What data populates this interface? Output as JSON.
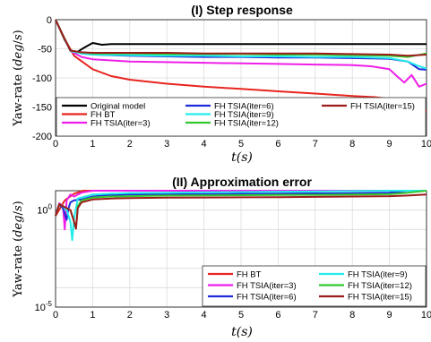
{
  "chart_data": [
    {
      "type": "line",
      "title": "(I) Step response",
      "xlabel": "t(s)",
      "ylabel": "Yaw-rate (deg/s)",
      "xlim": [
        0,
        10
      ],
      "ylim": [
        -200,
        0
      ],
      "xticks": [
        "0",
        "1",
        "2",
        "3",
        "4",
        "5",
        "6",
        "7",
        "8",
        "9",
        "10"
      ],
      "yticks": [
        "0",
        "-50",
        "-100",
        "-150",
        "-200"
      ],
      "grid": true,
      "legend_position": "bottom",
      "series": [
        {
          "name": "Original model",
          "color": "#000000",
          "x": [
            0,
            0.25,
            0.4,
            0.55,
            0.75,
            1.0,
            1.25,
            1.5,
            2,
            3,
            4,
            5,
            6,
            7,
            8,
            9,
            9.5,
            10
          ],
          "y": [
            0,
            -35,
            -52,
            -57,
            -49,
            -40,
            -43,
            -42,
            -42,
            -42,
            -42,
            -42,
            -42,
            -42,
            -42,
            -42,
            -42,
            -42
          ]
        },
        {
          "name": "FH BT",
          "color": "#e8251f",
          "x": [
            0,
            0.2,
            0.5,
            1,
            1.5,
            2,
            3,
            4,
            5,
            6,
            7,
            8,
            8.6,
            9,
            9.3,
            9.5,
            9.7,
            9.85,
            10
          ],
          "y": [
            0,
            -28,
            -62,
            -85,
            -97,
            -103,
            -110,
            -115,
            -119,
            -123,
            -127,
            -131,
            -133,
            -136,
            -138,
            -140,
            -143,
            -150,
            -158
          ]
        },
        {
          "name": "FH TSIA(iter=3)",
          "color": "#ee1fe8",
          "x": [
            0,
            0.2,
            0.4,
            0.7,
            1,
            1.5,
            2,
            3,
            4,
            5,
            6,
            7,
            8,
            8.5,
            9,
            9.2,
            9.4,
            9.6,
            9.8,
            10
          ],
          "y": [
            0,
            -27,
            -54,
            -64,
            -68,
            -70,
            -72,
            -73,
            -74,
            -75,
            -76,
            -77,
            -78,
            -80,
            -85,
            -97,
            -108,
            -95,
            -115,
            -110
          ]
        },
        {
          "name": "FH TSIA(iter=6)",
          "color": "#1f2ad8",
          "x": [
            0,
            0.2,
            0.4,
            0.7,
            1,
            2,
            3,
            4,
            5,
            6,
            7,
            8,
            9,
            9.5,
            9.8,
            10
          ],
          "y": [
            0,
            -27,
            -53,
            -58,
            -60,
            -62,
            -63,
            -64,
            -64,
            -65,
            -65,
            -66,
            -67,
            -72,
            -85,
            -86
          ]
        },
        {
          "name": "FH TSIA(iter=9)",
          "color": "#22ecec",
          "x": [
            0,
            0.2,
            0.4,
            0.7,
            1,
            2,
            3,
            4,
            5,
            6,
            7,
            8,
            9,
            9.5,
            9.8,
            10
          ],
          "y": [
            0,
            -27,
            -54,
            -58,
            -60,
            -61,
            -62,
            -62,
            -63,
            -63,
            -64,
            -64,
            -66,
            -72,
            -80,
            -84
          ]
        },
        {
          "name": "FH TSIA(iter=12)",
          "color": "#33c82e",
          "x": [
            0,
            0.2,
            0.4,
            0.7,
            1,
            2,
            3,
            4,
            5,
            6,
            7,
            8,
            9,
            9.5,
            10
          ],
          "y": [
            0,
            -27,
            -53,
            -56,
            -58,
            -58,
            -59,
            -59,
            -59,
            -60,
            -60,
            -61,
            -62,
            -64,
            -58
          ]
        },
        {
          "name": "FH TSIA(iter=15)",
          "color": "#9b1c1c",
          "x": [
            0,
            0.2,
            0.4,
            0.7,
            1,
            2,
            3,
            4,
            5,
            6,
            7,
            8,
            9,
            9.5,
            10
          ],
          "y": [
            0,
            -27,
            -53,
            -56,
            -57,
            -57,
            -57,
            -58,
            -58,
            -58,
            -58,
            -59,
            -60,
            -62,
            -60
          ]
        }
      ]
    },
    {
      "type": "line",
      "title": "(II) Approximation error",
      "xlabel": "t(s)",
      "ylabel": "Yaw-rate (deg/s)",
      "xlim": [
        0,
        10
      ],
      "ylim_log10": [
        -5,
        1
      ],
      "yscale": "log",
      "xticks": [
        "0",
        "1",
        "2",
        "3",
        "4",
        "5",
        "6",
        "7",
        "8",
        "9",
        "10"
      ],
      "yticks": [
        {
          "label": "10",
          "exp": "0",
          "log10": 0
        },
        {
          "label": "10",
          "exp": "-5",
          "log10": -5
        }
      ],
      "grid": true,
      "legend_position": "bottom-right",
      "series": [
        {
          "name": "FH BT",
          "color": "#e8251f",
          "x": [
            0,
            0.25,
            0.5,
            0.75,
            1,
            1.5,
            2,
            3,
            4,
            5,
            6,
            7,
            8,
            9,
            9.5,
            10
          ],
          "log10_y": [
            -0.3,
            0.5,
            0.85,
            1.15,
            1.3,
            1.4,
            1.45,
            1.48,
            1.5,
            1.52,
            1.53,
            1.55,
            1.56,
            1.57,
            1.6,
            1.65
          ]
        },
        {
          "name": "FH TSIA(iter=3)",
          "color": "#ee1fe8",
          "x": [
            0,
            0.1,
            0.2,
            0.25,
            0.3,
            0.4,
            0.5,
            0.7,
            1,
            1.5,
            2,
            3,
            4,
            5,
            6,
            7,
            8,
            9,
            9.5,
            10
          ],
          "log10_y": [
            -0.3,
            0.35,
            0.2,
            -1.0,
            0.5,
            0.8,
            0.7,
            0.9,
            1.0,
            1.08,
            1.12,
            1.15,
            1.16,
            1.18,
            1.2,
            1.22,
            1.24,
            1.26,
            1.35,
            1.5
          ]
        },
        {
          "name": "FH TSIA(iter=6)",
          "color": "#1f2ad8",
          "x": [
            0,
            0.1,
            0.2,
            0.3,
            0.35,
            0.4,
            0.5,
            0.7,
            1,
            1.5,
            2,
            3,
            4,
            5,
            6,
            7,
            8,
            9,
            9.5,
            10
          ],
          "log10_y": [
            -0.3,
            0.3,
            0.1,
            -0.5,
            0.1,
            0.4,
            0.5,
            0.55,
            0.7,
            0.78,
            0.8,
            0.82,
            0.83,
            0.84,
            0.85,
            0.86,
            0.87,
            0.9,
            1.0,
            1.2
          ]
        },
        {
          "name": "FH TSIA(iter=9)",
          "color": "#22ecec",
          "x": [
            0,
            0.1,
            0.2,
            0.3,
            0.4,
            0.45,
            0.5,
            0.6,
            0.8,
            1,
            1.5,
            2,
            3,
            4,
            5,
            6,
            7,
            8,
            9,
            9.5,
            10
          ],
          "log10_y": [
            -0.3,
            0.3,
            0.2,
            0.0,
            -0.6,
            -1.55,
            -0.4,
            0.6,
            0.7,
            0.8,
            0.85,
            0.88,
            0.9,
            0.92,
            0.93,
            0.95,
            0.96,
            0.98,
            1.0,
            1.1,
            1.3
          ]
        },
        {
          "name": "FH TSIA(iter=12)",
          "color": "#33c82e",
          "x": [
            0,
            0.1,
            0.2,
            0.3,
            0.4,
            0.5,
            0.55,
            0.6,
            0.7,
            1,
            1.5,
            2,
            3,
            4,
            5,
            6,
            7,
            8,
            9,
            9.5,
            10
          ],
          "log10_y": [
            -0.3,
            0.3,
            0.2,
            0.1,
            0.0,
            -0.6,
            -0.95,
            0.2,
            0.5,
            0.65,
            0.7,
            0.72,
            0.75,
            0.76,
            0.77,
            0.78,
            0.79,
            0.8,
            0.82,
            0.9,
            1.0
          ]
        },
        {
          "name": "FH TSIA(iter=15)",
          "color": "#9b1c1c",
          "x": [
            0,
            0.1,
            0.2,
            0.3,
            0.4,
            0.5,
            0.55,
            0.6,
            0.7,
            1,
            1.5,
            2,
            3,
            4,
            5,
            6,
            7,
            8,
            9,
            9.5,
            10
          ],
          "log10_y": [
            -0.3,
            0.3,
            0.2,
            0.1,
            0.0,
            -0.6,
            -0.95,
            0.1,
            0.4,
            0.55,
            0.6,
            0.62,
            0.64,
            0.65,
            0.66,
            0.67,
            0.68,
            0.7,
            0.72,
            0.75,
            0.8
          ]
        }
      ]
    }
  ]
}
